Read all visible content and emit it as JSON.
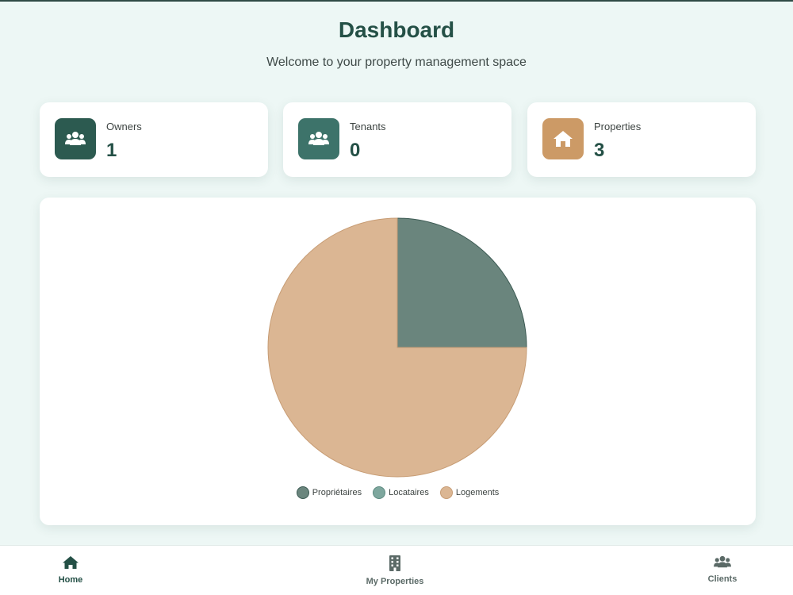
{
  "header": {
    "title": "Dashboard",
    "subtitle": "Welcome to your property management space"
  },
  "stats": [
    {
      "label": "Owners",
      "value": "1",
      "icon": "users-icon",
      "color": "#2c5a50"
    },
    {
      "label": "Tenants",
      "value": "0",
      "icon": "users-icon",
      "color": "#3d736a"
    },
    {
      "label": "Properties",
      "value": "3",
      "icon": "home-icon",
      "color": "#cc9a66"
    }
  ],
  "chart_data": {
    "type": "pie",
    "categories": [
      "Propriétaires",
      "Locataires",
      "Logements"
    ],
    "values": [
      1,
      0,
      3
    ],
    "colors": [
      "#6a857d",
      "#7ea79e",
      "#dbb693"
    ],
    "legend_position": "bottom"
  },
  "nav": {
    "items": [
      {
        "label": "Home",
        "icon": "home-icon",
        "active": true
      },
      {
        "label": "My Properties",
        "icon": "building-icon",
        "active": false
      },
      {
        "label": "Clients",
        "icon": "users-icon",
        "active": false
      }
    ],
    "active_color": "#245046",
    "inactive_color": "#5b6a67"
  }
}
